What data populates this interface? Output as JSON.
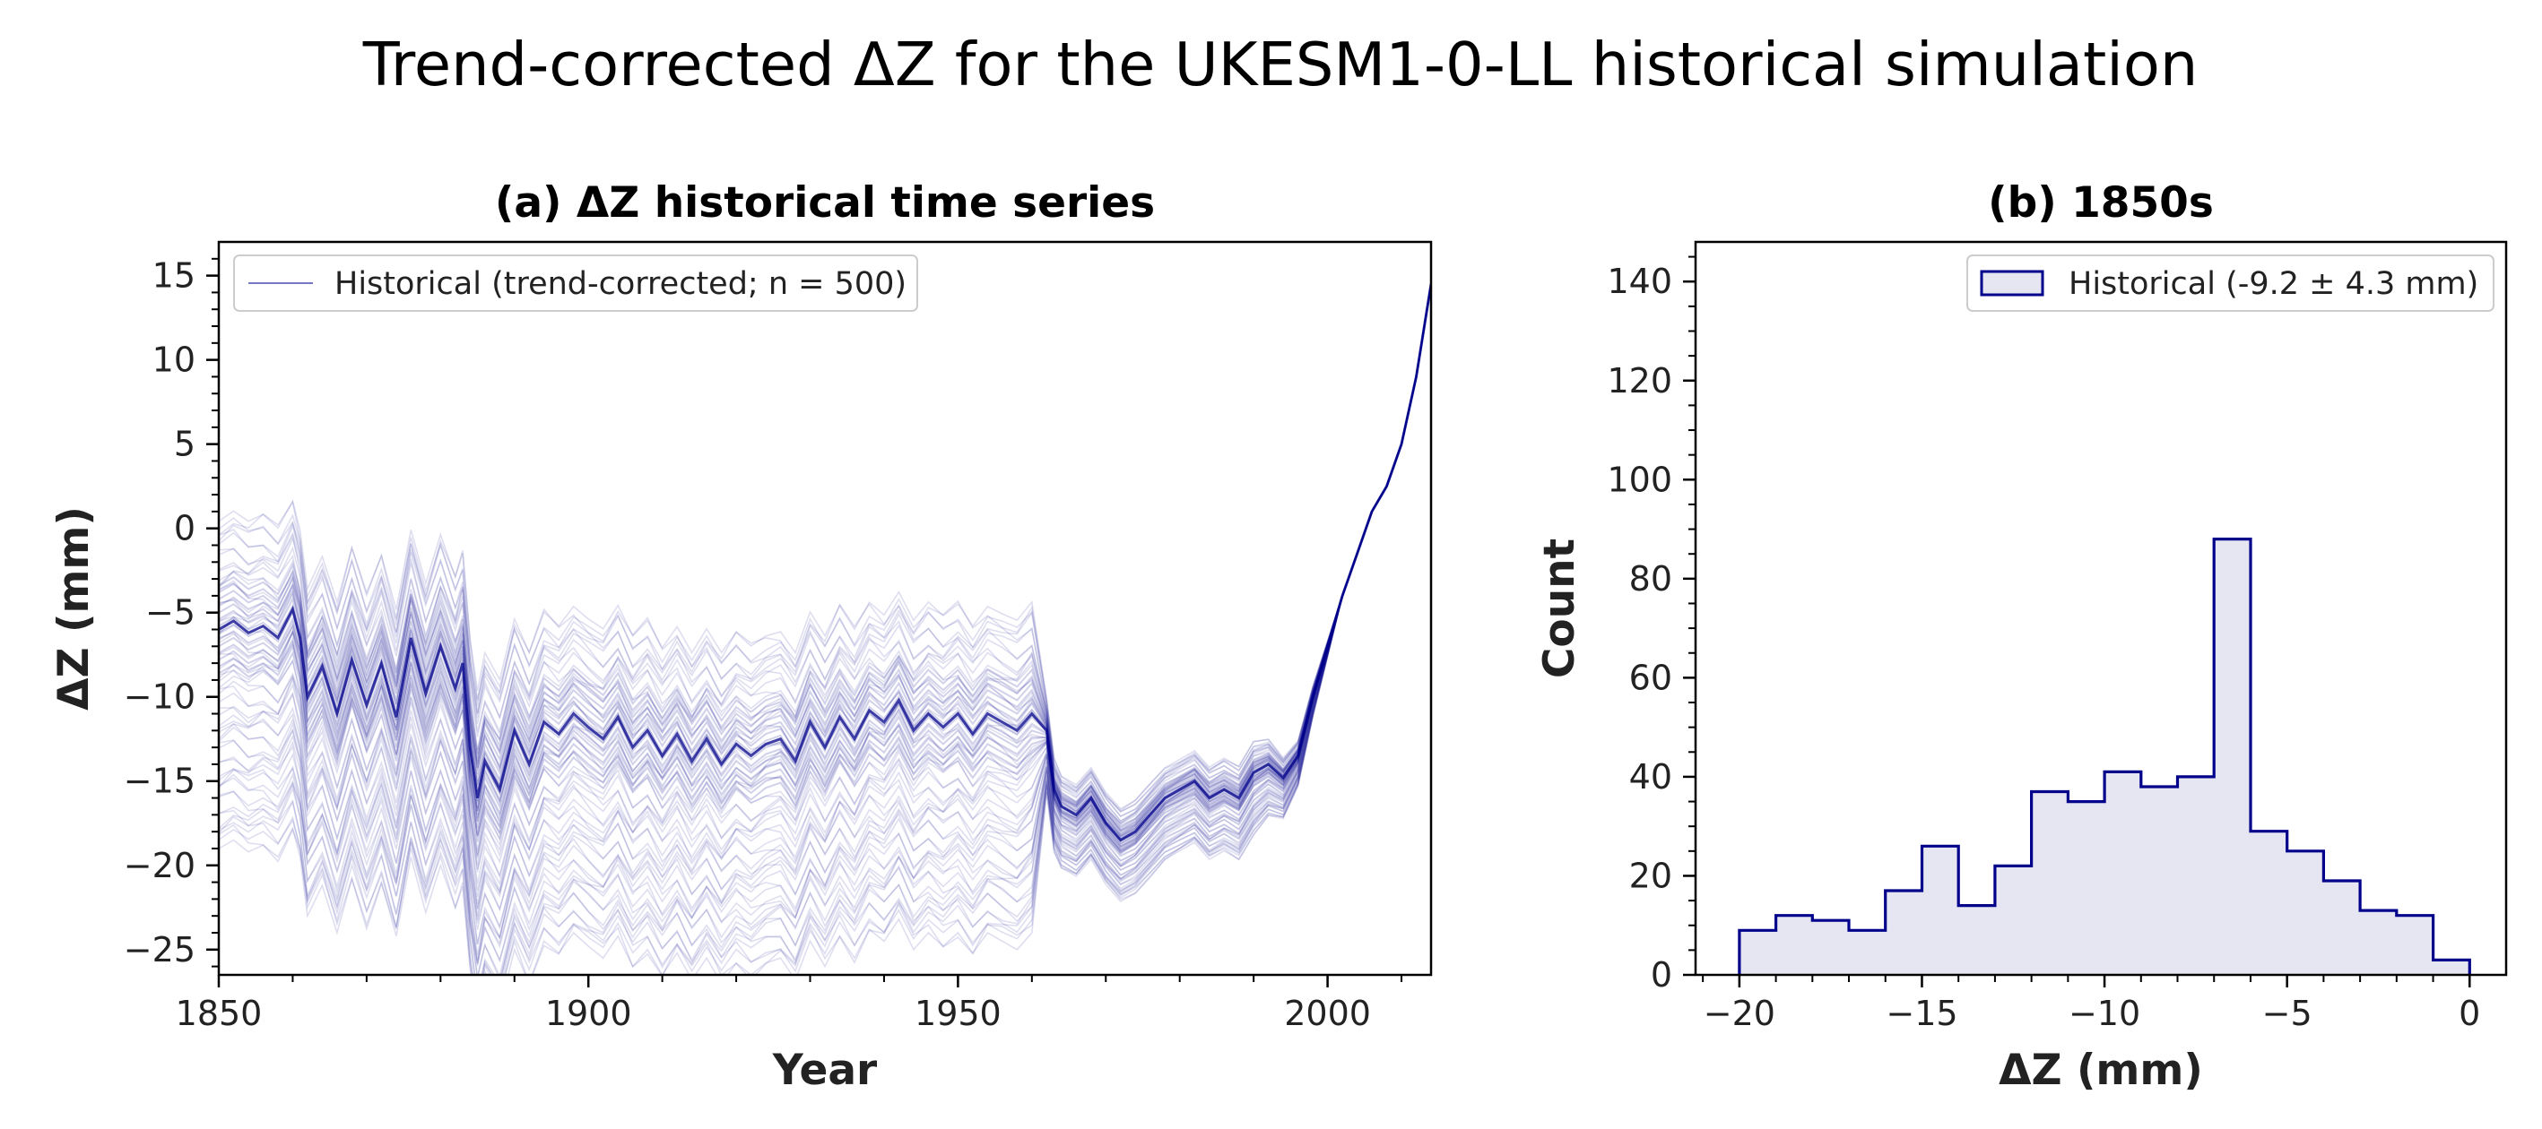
{
  "figure": {
    "title": "Trend-corrected ΔZ for the UKESM1-0-LL historical simulation"
  },
  "colors": {
    "series": "#00008b",
    "fill": "#e6e6f3",
    "text": "#222222"
  },
  "chart_data": [
    {
      "id": "a",
      "type": "line",
      "title": "(a) ΔZ historical time series",
      "xlabel": "Year",
      "ylabel": "ΔZ (mm)",
      "xlim": [
        1850,
        2014
      ],
      "ylim": [
        -26.5,
        17
      ],
      "xticks": [
        1850,
        1900,
        1950,
        2000
      ],
      "xtick_labels": [
        "1850",
        "1900",
        "1950",
        "2000"
      ],
      "yticks": [
        15,
        10,
        5,
        0,
        -5,
        -10,
        -15,
        -20,
        -25
      ],
      "ytick_labels": [
        "15",
        "10",
        "5",
        "0",
        "−5",
        "−10",
        "−15",
        "−20",
        "−25"
      ],
      "grid": false,
      "legend_position": "upper-left",
      "legend": "Historical (trend-corrected; n = 500)",
      "ensemble_size": 500,
      "ensemble_offset_range_mm": [
        -13,
        6.5
      ],
      "x": [
        1850,
        1852,
        1854,
        1856,
        1858,
        1860,
        1861,
        1862,
        1864,
        1866,
        1868,
        1870,
        1872,
        1874,
        1876,
        1878,
        1880,
        1882,
        1883,
        1884,
        1885,
        1886,
        1888,
        1890,
        1892,
        1894,
        1896,
        1898,
        1900,
        1902,
        1904,
        1906,
        1908,
        1910,
        1912,
        1914,
        1916,
        1918,
        1920,
        1922,
        1924,
        1926,
        1928,
        1930,
        1932,
        1934,
        1936,
        1938,
        1940,
        1942,
        1944,
        1946,
        1948,
        1950,
        1952,
        1954,
        1956,
        1958,
        1960,
        1962,
        1963,
        1964,
        1966,
        1968,
        1970,
        1972,
        1974,
        1976,
        1978,
        1980,
        1982,
        1984,
        1986,
        1988,
        1990,
        1992,
        1994,
        1996,
        1998,
        2000,
        2002,
        2004,
        2006,
        2008,
        2010,
        2012,
        2014
      ],
      "median": [
        -6,
        -5.5,
        -6.2,
        -5.8,
        -6.5,
        -4.8,
        -6.5,
        -10,
        -8.2,
        -11,
        -7.8,
        -10.5,
        -8,
        -11.2,
        -6.5,
        -9.8,
        -7,
        -9.5,
        -8,
        -13,
        -16,
        -13.8,
        -15.5,
        -12,
        -14,
        -11.5,
        -12.2,
        -11,
        -11.8,
        -12.5,
        -11.2,
        -13,
        -12,
        -13.5,
        -12.2,
        -13.8,
        -12.5,
        -14,
        -12.8,
        -13.5,
        -12.8,
        -12.5,
        -13.8,
        -11.5,
        -13,
        -11.2,
        -12.5,
        -10.8,
        -11.5,
        -10.2,
        -12,
        -11,
        -11.8,
        -11,
        -12.2,
        -11,
        -11.5,
        -12,
        -11,
        -12,
        -15.5,
        -16.5,
        -17,
        -16,
        -17.5,
        -18.5,
        -18,
        -17,
        -16,
        -15.5,
        -15,
        -16,
        -15.5,
        -16,
        -14.5,
        -14,
        -14.8,
        -13.5,
        -10,
        -7,
        -4,
        -1.5,
        1,
        2.5,
        5,
        9,
        14.5
      ]
    },
    {
      "id": "b",
      "type": "bar",
      "title": "(b) 1850s",
      "xlabel": "ΔZ (mm)",
      "ylabel": "Count",
      "xlim": [
        -21.2,
        1
      ],
      "ylim": [
        0,
        148
      ],
      "xticks": [
        -20,
        -15,
        -10,
        -5,
        0
      ],
      "xtick_labels": [
        "−20",
        "−15",
        "−10",
        "−5",
        "0"
      ],
      "yticks": [
        0,
        20,
        40,
        60,
        80,
        100,
        120,
        140
      ],
      "ytick_labels": [
        "0",
        "20",
        "40",
        "60",
        "80",
        "100",
        "120",
        "140"
      ],
      "grid": false,
      "legend_position": "upper-right",
      "legend": "Historical (-9.2 ± 4.3 mm)",
      "bin_edges": [
        -20,
        -19,
        -18,
        -17,
        -16,
        -15,
        -14,
        -13,
        -12,
        -11,
        -10,
        -9,
        -8,
        -7,
        -6,
        -5,
        -4,
        -3,
        -2,
        -1,
        0
      ],
      "counts": [
        9,
        12,
        11,
        9,
        17,
        26,
        14,
        22,
        37,
        35,
        41,
        38,
        40,
        88,
        29,
        25,
        19,
        13,
        12,
        3
      ]
    }
  ]
}
